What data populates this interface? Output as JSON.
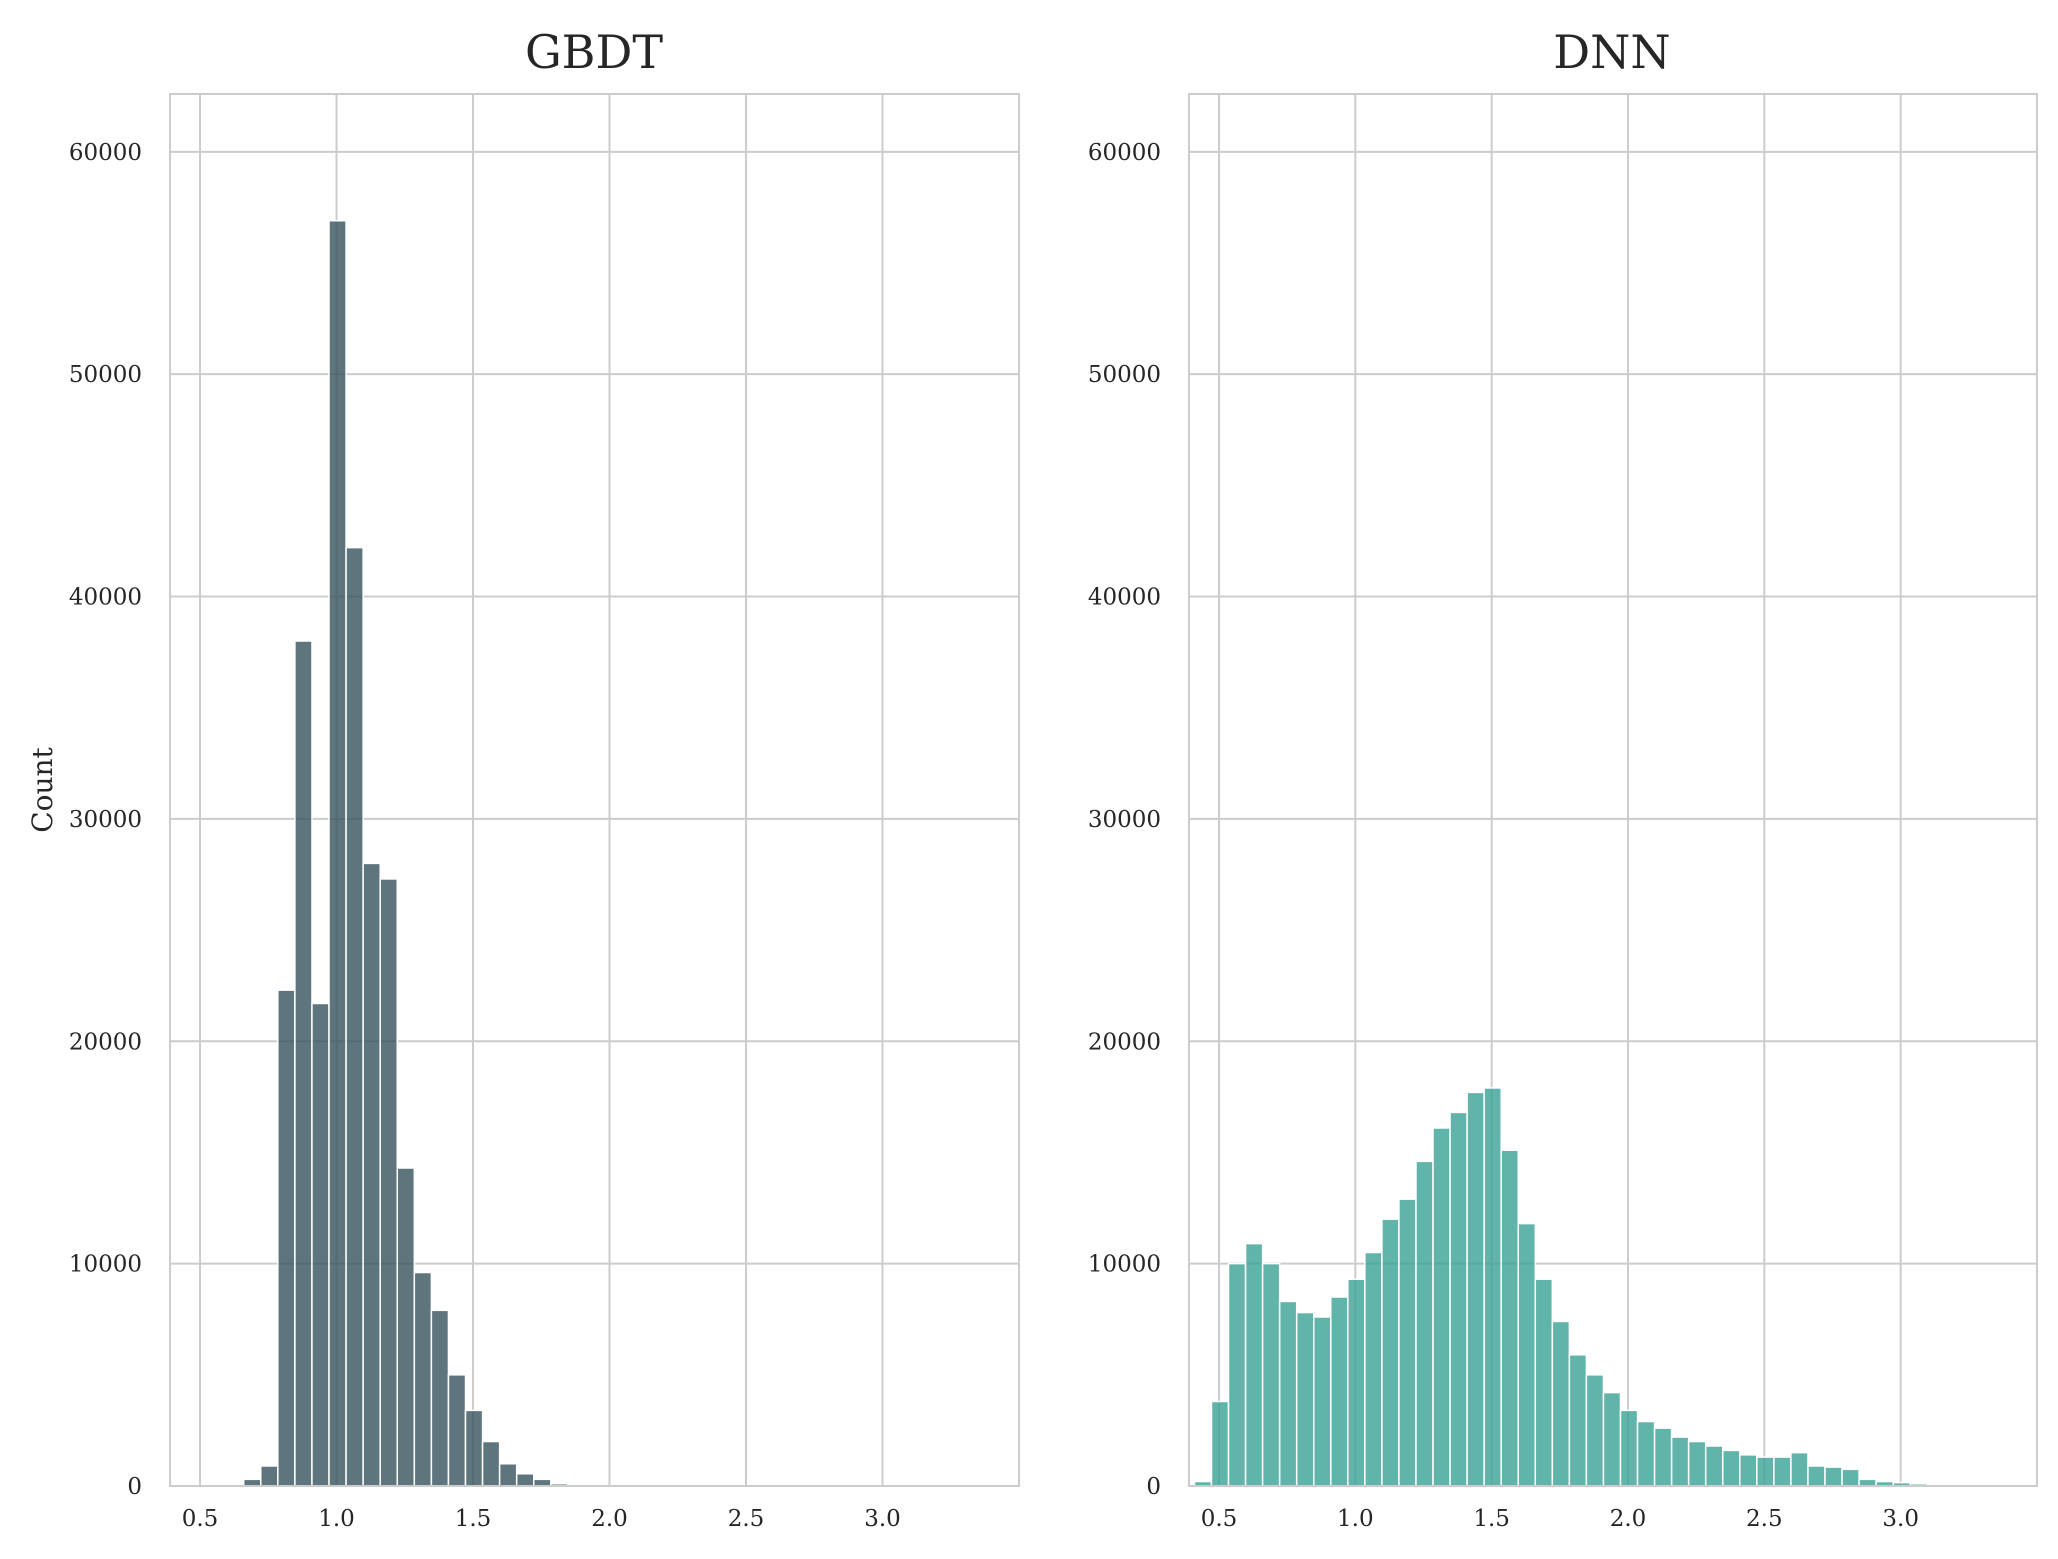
{
  "chart_data": [
    {
      "type": "bar",
      "title": "GBDT",
      "xlabel": "",
      "ylabel": "Count",
      "color": "#37535e",
      "xlim": [
        0.39,
        3.5
      ],
      "ylim": [
        0,
        62600
      ],
      "xticks": [
        "0.5",
        "1.0",
        "1.5",
        "2.0",
        "2.5",
        "3.0"
      ],
      "yticks": [
        "0",
        "10000",
        "20000",
        "30000",
        "40000",
        "50000",
        "60000"
      ],
      "grid": true,
      "bin_start": 0.66,
      "bin_width": 0.0625,
      "values": [
        300,
        900,
        22300,
        38000,
        21700,
        56900,
        42200,
        28000,
        27300,
        14300,
        9600,
        7900,
        5000,
        3400,
        2000,
        1000,
        550,
        300,
        100,
        40
      ]
    },
    {
      "type": "bar",
      "title": "DNN",
      "xlabel": "",
      "ylabel": "",
      "color": "#3aa195",
      "xlim": [
        0.39,
        3.5
      ],
      "ylim": [
        0,
        62600
      ],
      "xticks": [
        "0.5",
        "1.0",
        "1.5",
        "2.0",
        "2.5",
        "3.0"
      ],
      "yticks": [
        "0",
        "10000",
        "20000",
        "30000",
        "40000",
        "50000",
        "60000"
      ],
      "grid": true,
      "bin_start": 0.41,
      "bin_width": 0.0625,
      "values": [
        200,
        3800,
        10000,
        10900,
        10000,
        8300,
        7800,
        7600,
        8500,
        9300,
        10500,
        12000,
        12900,
        14600,
        16100,
        16800,
        17700,
        17900,
        15100,
        11800,
        9300,
        7400,
        5900,
        5000,
        4200,
        3400,
        2900,
        2600,
        2200,
        2000,
        1800,
        1600,
        1400,
        1300,
        1300,
        1500,
        900,
        850,
        750,
        300,
        200,
        150,
        100
      ]
    }
  ]
}
